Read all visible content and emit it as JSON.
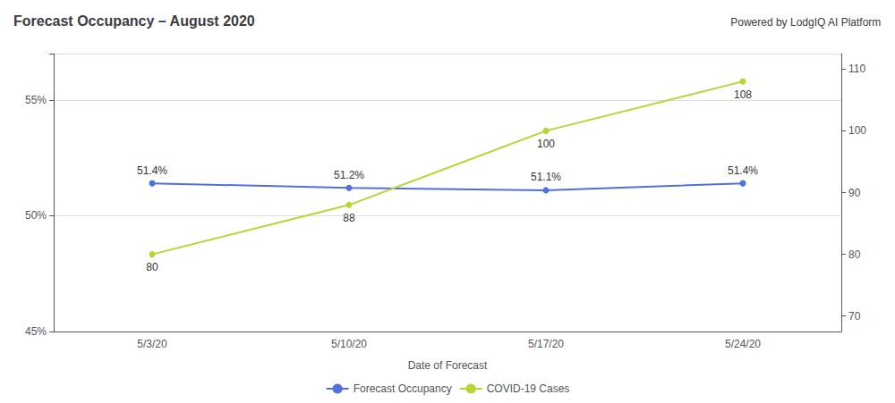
{
  "chart_data": {
    "type": "line",
    "title": "Forecast Occupancy – August 2020",
    "subtitle": "Powered by LodgIQ AI Platform",
    "xlabel": "Date of Forecast",
    "categories": [
      "5/3/20",
      "5/10/20",
      "5/17/20",
      "5/24/20"
    ],
    "series": [
      {
        "name": "Forecast Occupancy",
        "values": [
          51.4,
          51.2,
          51.1,
          51.4
        ],
        "value_labels": [
          "51.4%",
          "51.2%",
          "51.1%",
          "51.4%"
        ],
        "marker": "circle"
      },
      {
        "name": "COVID-19 Cases",
        "values": [
          80,
          88,
          100,
          108
        ],
        "axis": "y2",
        "marker": "circle"
      }
    ],
    "ylim": [
      45,
      57
    ],
    "yticks": [
      {
        "value": 45,
        "label": "45%"
      },
      {
        "value": 50,
        "label": "50%"
      },
      {
        "value": 55,
        "label": "55%"
      }
    ],
    "y2lim": [
      67.5,
      112.5
    ],
    "y2ticks": [
      70,
      80,
      90,
      100,
      110
    ],
    "grid": true,
    "legend": "bottom",
    "data_labels": true
  }
}
